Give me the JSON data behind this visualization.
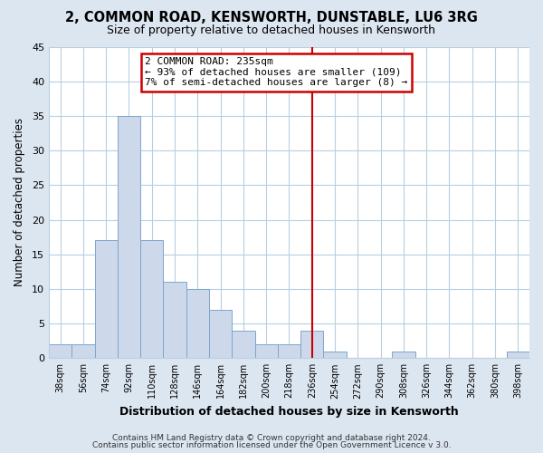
{
  "title": "2, COMMON ROAD, KENSWORTH, DUNSTABLE, LU6 3RG",
  "subtitle": "Size of property relative to detached houses in Kensworth",
  "xlabel": "Distribution of detached houses by size in Kensworth",
  "ylabel": "Number of detached properties",
  "bin_labels": [
    "38sqm",
    "56sqm",
    "74sqm",
    "92sqm",
    "110sqm",
    "128sqm",
    "146sqm",
    "164sqm",
    "182sqm",
    "200sqm",
    "218sqm",
    "236sqm",
    "254sqm",
    "272sqm",
    "290sqm",
    "308sqm",
    "326sqm",
    "344sqm",
    "362sqm",
    "380sqm",
    "398sqm"
  ],
  "bar_heights": [
    2,
    2,
    17,
    35,
    17,
    11,
    10,
    7,
    4,
    2,
    2,
    4,
    1,
    0,
    0,
    1,
    0,
    0,
    0,
    0,
    1
  ],
  "bar_color": "#cdd9ea",
  "bar_edge_color": "#7ca6cc",
  "vline_x_index": 11.5,
  "ylim": [
    0,
    45
  ],
  "yticks": [
    0,
    5,
    10,
    15,
    20,
    25,
    30,
    35,
    40,
    45
  ],
  "annotation_title": "2 COMMON ROAD: 235sqm",
  "annotation_line1": "← 93% of detached houses are smaller (109)",
  "annotation_line2": "7% of semi-detached houses are larger (8) →",
  "annotation_box_color": "#ffffff",
  "annotation_box_edge": "#cc0000",
  "vline_color": "#cc0000",
  "footer1": "Contains HM Land Registry data © Crown copyright and database right 2024.",
  "footer2": "Contains public sector information licensed under the Open Government Licence v 3.0.",
  "fig_background_color": "#dce6f1",
  "plot_background_color": "#ffffff",
  "grid_color": "#b8cfe0"
}
